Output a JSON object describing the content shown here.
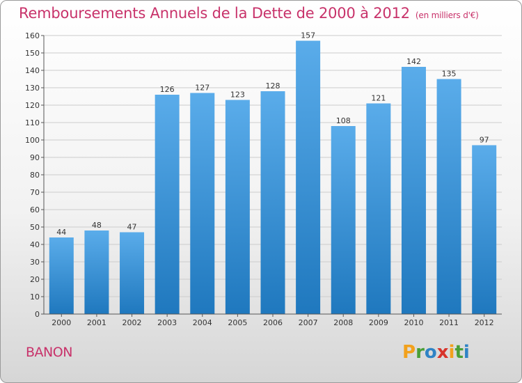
{
  "colors": {
    "title": "#c8326a",
    "bar_top": "#5aacea",
    "bar_bottom": "#1f78be",
    "grid": "#cccccc",
    "axis": "#555555"
  },
  "chart_data": {
    "type": "bar",
    "title": "Remboursements Annuels de la Dette de 2000 à 2012",
    "subtitle": "(en milliers d'€)",
    "xlabel": "",
    "ylabel": "",
    "categories": [
      "2000",
      "2001",
      "2002",
      "2003",
      "2004",
      "2005",
      "2006",
      "2007",
      "2008",
      "2009",
      "2010",
      "2011",
      "2012"
    ],
    "values": [
      44,
      48,
      47,
      126,
      127,
      123,
      128,
      157,
      108,
      121,
      142,
      135,
      97
    ],
    "ylim": [
      0,
      160
    ],
    "yticks": [
      0,
      10,
      20,
      30,
      40,
      50,
      60,
      70,
      80,
      90,
      100,
      110,
      120,
      130,
      140,
      150,
      160
    ],
    "grid": true,
    "legend": "none"
  },
  "footer": {
    "place": "BANON",
    "brand_letters": [
      {
        "char": "P",
        "color": "#f2a11c"
      },
      {
        "char": "r",
        "color": "#4a9f36"
      },
      {
        "char": "o",
        "color": "#2f83c5"
      },
      {
        "char": "x",
        "color": "#d7342b"
      },
      {
        "char": "i",
        "color": "#f2a11c"
      },
      {
        "char": "t",
        "color": "#4a9f36"
      },
      {
        "char": "i",
        "color": "#2f83c5"
      }
    ]
  }
}
